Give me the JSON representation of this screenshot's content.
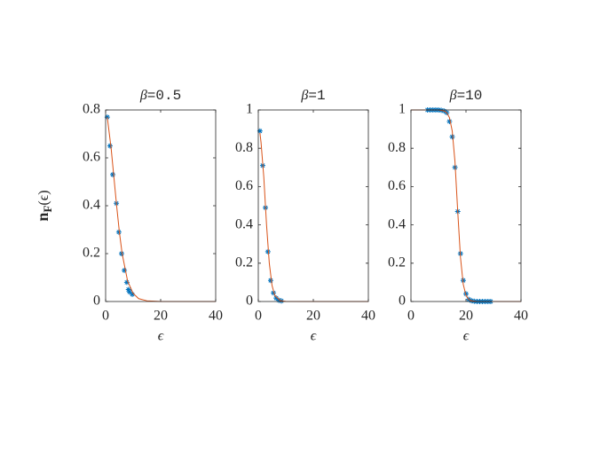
{
  "chart_data": [
    {
      "type": "line",
      "title": [
        "β",
        "=0.5"
      ],
      "xlabel": "ϵ",
      "ylabel": [
        "n",
        "F",
        "(ϵ)"
      ],
      "xlim": [
        0,
        40
      ],
      "xticks": [
        0,
        20,
        40
      ],
      "ylim": [
        0,
        0.8
      ],
      "yticks": [
        0,
        0.2,
        0.4,
        0.6,
        0.8
      ],
      "series": [
        {
          "color": "#0072bd",
          "marker": "*",
          "x": [
            0.6,
            1.6,
            2.6,
            3.9,
            4.8,
            5.8,
            6.8,
            7.7,
            8.3,
            8.7,
            9.7
          ],
          "values": [
            0.77,
            0.65,
            0.53,
            0.41,
            0.29,
            0.2,
            0.13,
            0.08,
            0.05,
            0.04,
            0.03
          ]
        },
        {
          "color": "#d95319",
          "x": [
            0.6,
            2,
            3,
            4,
            5,
            6,
            8,
            10,
            12,
            15,
            20,
            30,
            40
          ],
          "values": [
            0.77,
            0.64,
            0.52,
            0.4,
            0.29,
            0.2,
            0.085,
            0.034,
            0.012,
            0.003,
            0,
            0,
            0
          ]
        }
      ]
    },
    {
      "type": "line",
      "title": [
        "β",
        "=1"
      ],
      "xlabel": "ϵ",
      "xlim": [
        0,
        40
      ],
      "xticks": [
        0,
        20,
        40
      ],
      "ylim": [
        0,
        1
      ],
      "yticks": [
        0,
        0.2,
        0.4,
        0.6,
        0.8,
        1
      ],
      "series": [
        {
          "color": "#0072bd",
          "marker": "*",
          "x": [
            0.6,
            1.6,
            2.6,
            3.5,
            4.5,
            5.5,
            6.5,
            7.4,
            8.4
          ],
          "values": [
            0.89,
            0.71,
            0.49,
            0.26,
            0.11,
            0.045,
            0.018,
            0.007,
            0.003
          ]
        },
        {
          "color": "#d95319",
          "x": [
            0.6,
            1,
            2,
            3,
            4,
            5,
            6,
            8,
            10,
            15,
            20,
            40
          ],
          "values": [
            0.88,
            0.83,
            0.65,
            0.4,
            0.2,
            0.083,
            0.032,
            0.0045,
            0.0006,
            0,
            0,
            0
          ]
        }
      ]
    },
    {
      "type": "line",
      "title": [
        "β",
        "=10"
      ],
      "xlabel": "ϵ",
      "xlim": [
        0,
        40
      ],
      "xticks": [
        0,
        20,
        40
      ],
      "ylim": [
        0,
        1
      ],
      "yticks": [
        0,
        0.2,
        0.4,
        0.6,
        0.8,
        1
      ],
      "series": [
        {
          "color": "#0072bd",
          "marker": "*",
          "x": [
            6,
            7,
            8,
            9,
            10,
            11,
            12,
            13,
            14,
            15,
            16,
            17,
            18,
            19,
            20,
            21,
            22,
            23,
            24,
            25,
            26,
            27,
            28,
            29
          ],
          "values": [
            1,
            1,
            1,
            1,
            1,
            0.998,
            0.995,
            0.986,
            0.94,
            0.86,
            0.7,
            0.47,
            0.25,
            0.11,
            0.04,
            0.011,
            0.004,
            0.001,
            0,
            0,
            0,
            0,
            0,
            0
          ]
        },
        {
          "color": "#d95319",
          "x": [
            0,
            5,
            10,
            12,
            13,
            14,
            15,
            16,
            17,
            18,
            19,
            20,
            21,
            22,
            24,
            30,
            40
          ],
          "values": [
            1,
            1,
            1,
            0.995,
            0.986,
            0.96,
            0.89,
            0.73,
            0.47,
            0.23,
            0.09,
            0.032,
            0.011,
            0.004,
            0,
            0,
            0
          ]
        }
      ]
    }
  ]
}
